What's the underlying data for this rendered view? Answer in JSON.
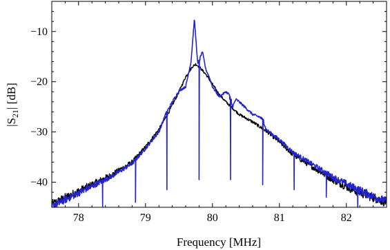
{
  "chart_data": {
    "type": "line",
    "title": "",
    "xlabel": "Frequency [MHz]",
    "ylabel_main": "|S",
    "ylabel_sub": "21",
    "ylabel_rest": "| [dB]",
    "xlim": [
      77.6,
      82.6
    ],
    "ylim": [
      -45,
      -4
    ],
    "xticks": [
      78,
      79,
      80,
      81,
      82
    ],
    "xtick_labels": [
      "78",
      "79",
      "80",
      "81",
      "82"
    ],
    "yticks": [
      -10,
      -20,
      -30,
      -40
    ],
    "ytick_labels": [
      "−10",
      "−20",
      "−30",
      "−40"
    ],
    "grid": false,
    "legend": "none",
    "series": [
      {
        "color": "#000000",
        "x": [
          77.6,
          77.9,
          78.2,
          78.5,
          78.8,
          79.0,
          79.2,
          79.35,
          79.5,
          79.6,
          79.7,
          79.75,
          79.8,
          79.9,
          80.0,
          80.1,
          80.2,
          80.4,
          80.6,
          80.8,
          81.0,
          81.2,
          81.5,
          81.8,
          82.1,
          82.4,
          82.6
        ],
        "y": [
          -44.5,
          -42.5,
          -40.5,
          -38.5,
          -36.0,
          -33.0,
          -29.5,
          -26.0,
          -22.0,
          -19.0,
          -17.0,
          -16.5,
          -17.0,
          -18.5,
          -20.5,
          -22.5,
          -24.0,
          -26.5,
          -28.0,
          -29.8,
          -32.0,
          -34.5,
          -37.0,
          -39.5,
          -41.5,
          -43.0,
          -44.0
        ],
        "noise": 0.6
      },
      {
        "color": "#2323d6",
        "x": [
          77.6,
          77.9,
          78.2,
          78.5,
          78.8,
          79.0,
          79.2,
          79.3,
          79.4,
          79.5,
          79.6,
          79.68,
          79.73,
          79.78,
          79.85,
          79.9,
          79.95,
          80.0,
          80.1,
          80.2,
          80.25,
          80.3,
          80.35,
          80.4,
          80.6,
          80.7,
          80.75,
          80.8,
          81.0,
          81.2,
          81.5,
          81.8,
          82.1,
          82.4,
          82.6
        ],
        "y": [
          -44.8,
          -42.8,
          -40.8,
          -38.8,
          -36.3,
          -33.3,
          -30.0,
          -26.5,
          -24.0,
          -21.8,
          -21.0,
          -16.0,
          -7.5,
          -16.5,
          -14.0,
          -17.5,
          -19.0,
          -21.0,
          -23.0,
          -22.0,
          -22.5,
          -25.0,
          -23.5,
          -24.0,
          -26.5,
          -27.0,
          -27.5,
          -29.5,
          -31.5,
          -34.0,
          -36.5,
          -39.0,
          -41.0,
          -42.8,
          -43.8
        ],
        "noise": 0.5,
        "dips": [
          {
            "x": 78.36,
            "y": -45
          },
          {
            "x": 78.85,
            "y": -44
          },
          {
            "x": 79.32,
            "y": -41.5
          },
          {
            "x": 79.8,
            "y": -39.5
          },
          {
            "x": 80.27,
            "y": -39.5
          },
          {
            "x": 80.75,
            "y": -40.5
          },
          {
            "x": 81.22,
            "y": -41.5
          },
          {
            "x": 81.7,
            "y": -43
          },
          {
            "x": 82.17,
            "y": -45
          }
        ]
      }
    ]
  }
}
